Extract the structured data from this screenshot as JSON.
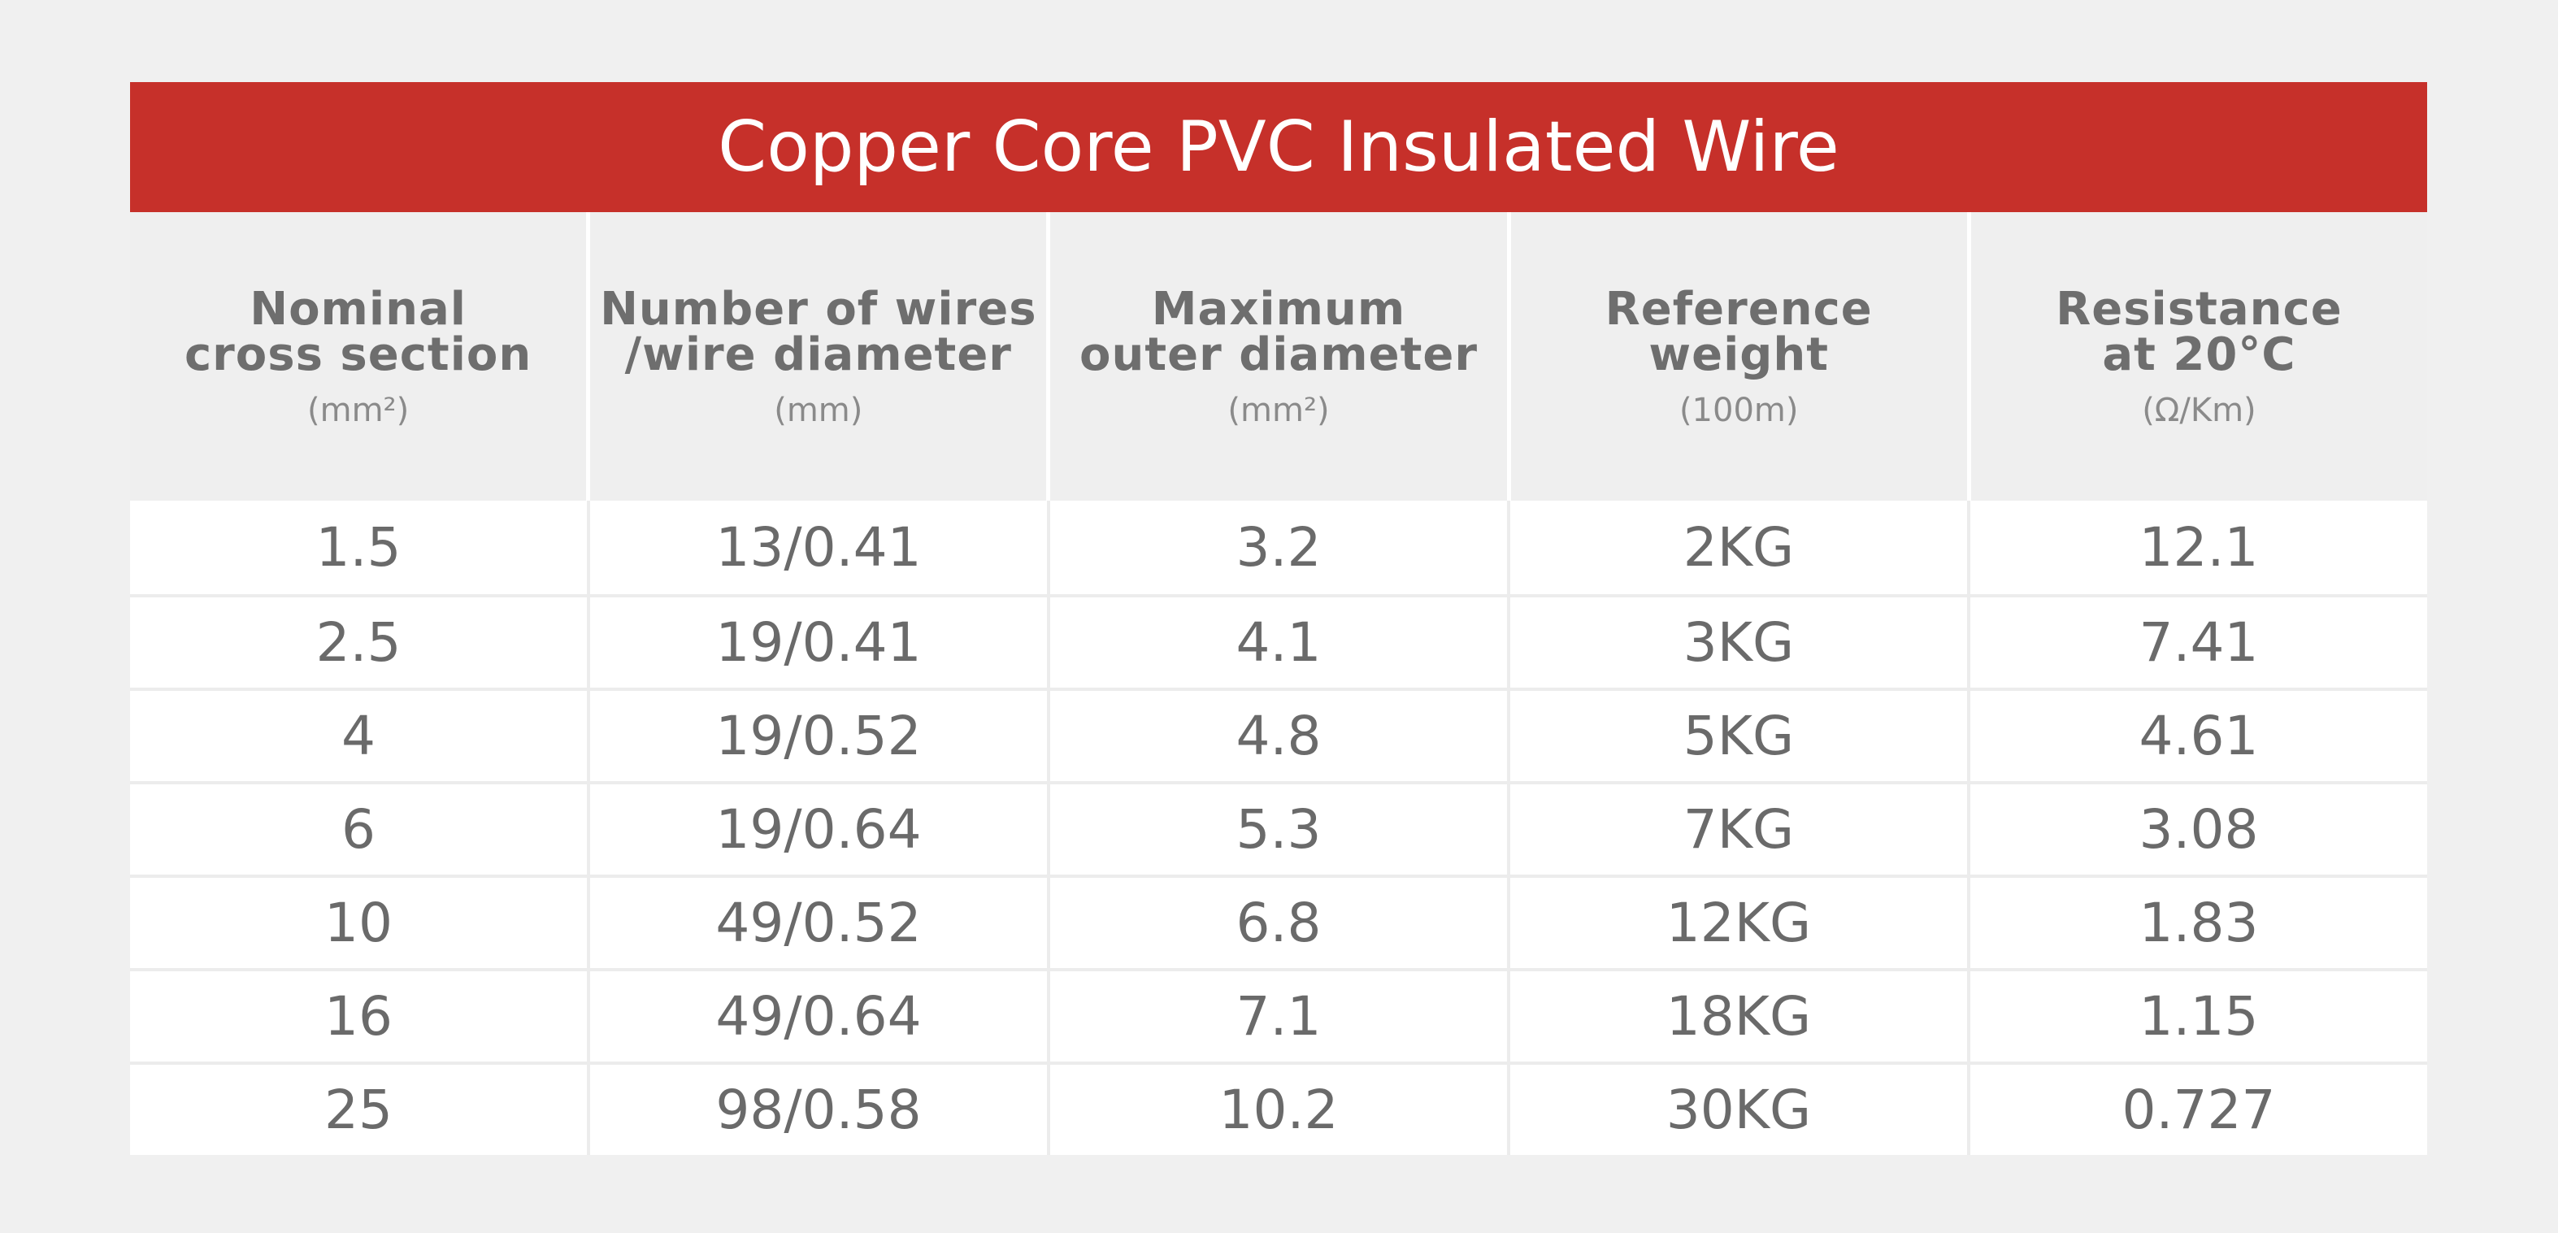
{
  "title": "Copper Core PVC Insulated Wire",
  "colors": {
    "title_background": "#c6302a",
    "header_background": "#efefef",
    "page_background": "#f0f0f0",
    "text": "#6a6a6a"
  },
  "columns": [
    {
      "line1": "Nominal",
      "line2": "cross section",
      "unit": "(mm²)"
    },
    {
      "line1": "Number of wires",
      "line2": "/wire diameter",
      "unit": "(mm)"
    },
    {
      "line1": "Maximum",
      "line2": "outer diameter",
      "unit": "(mm²)"
    },
    {
      "line1": "Reference",
      "line2": "weight",
      "unit": "(100m)"
    },
    {
      "line1": "Resistance",
      "line2": "at 20°C",
      "unit": "(Ω/Km)"
    }
  ],
  "rows": [
    [
      "1.5",
      "13/0.41",
      "3.2",
      "2KG",
      "12.1"
    ],
    [
      "2.5",
      "19/0.41",
      "4.1",
      "3KG",
      "7.41"
    ],
    [
      "4",
      "19/0.52",
      "4.8",
      "5KG",
      "4.61"
    ],
    [
      "6",
      "19/0.64",
      "5.3",
      "7KG",
      "3.08"
    ],
    [
      "10",
      "49/0.52",
      "6.8",
      "12KG",
      "1.83"
    ],
    [
      "16",
      "49/0.64",
      "7.1",
      "18KG",
      "1.15"
    ],
    [
      "25",
      "98/0.58",
      "10.2",
      "30KG",
      "0.727"
    ]
  ]
}
